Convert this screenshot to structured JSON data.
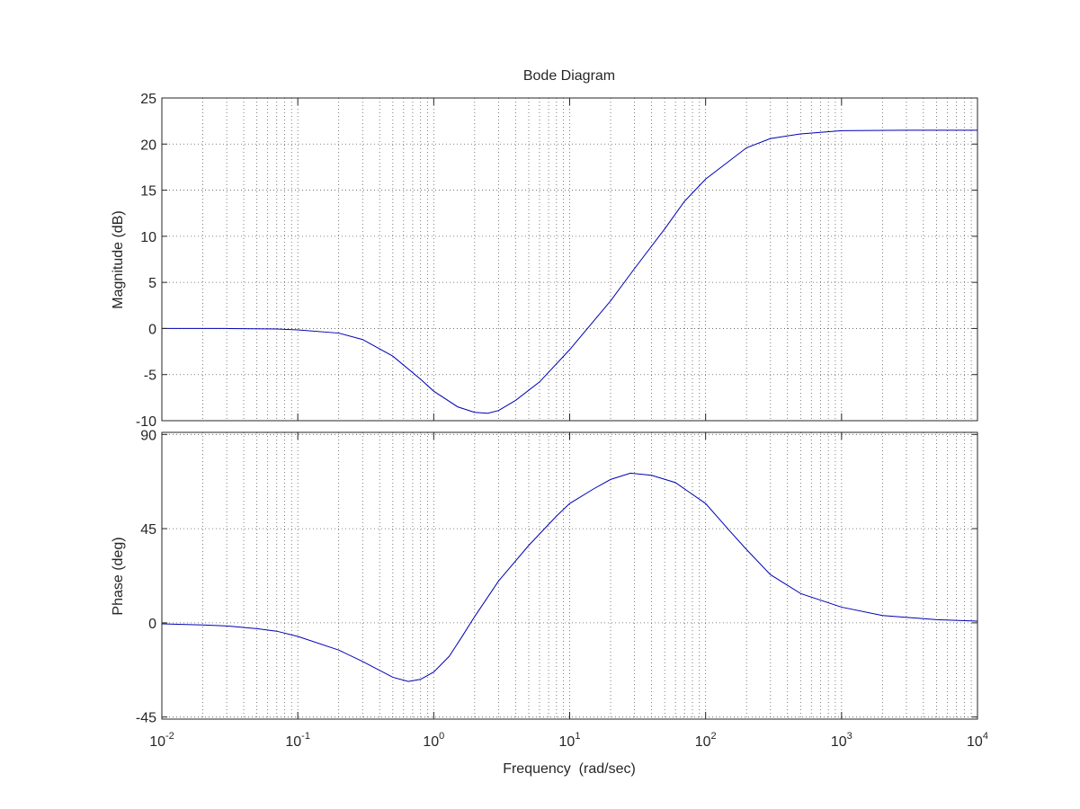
{
  "chart_data": {
    "type": "line",
    "title": "Bode Diagram",
    "xlabel": "Frequency  (rad/sec)",
    "x_scale": "log",
    "xlim": [
      0.01,
      10000
    ],
    "x_ticks": [
      {
        "base": "10",
        "exp": "-2"
      },
      {
        "base": "10",
        "exp": "-1"
      },
      {
        "base": "10",
        "exp": "0"
      },
      {
        "base": "10",
        "exp": "1"
      },
      {
        "base": "10",
        "exp": "2"
      },
      {
        "base": "10",
        "exp": "3"
      },
      {
        "base": "10",
        "exp": "4"
      }
    ],
    "grid": true,
    "line_color": "#0000b4",
    "panels": [
      {
        "name": "magnitude",
        "ylabel": "Magnitude (dB)",
        "ylim": [
          -10,
          25
        ],
        "yticks": [
          25,
          20,
          15,
          10,
          5,
          0,
          -5,
          -10
        ],
        "x": [
          0.01,
          0.03,
          0.07,
          0.1,
          0.2,
          0.3,
          0.5,
          0.8,
          1,
          1.5,
          2,
          2.5,
          3,
          4,
          6,
          10,
          20,
          30,
          50,
          70,
          100,
          200,
          300,
          500,
          1000,
          3000,
          10000
        ],
        "y": [
          0,
          0,
          -0.05,
          -0.15,
          -0.5,
          -1.2,
          -3,
          -5.5,
          -6.8,
          -8.5,
          -9.1,
          -9.2,
          -8.9,
          -7.8,
          -5.8,
          -2.3,
          3,
          6.5,
          10.8,
          13.8,
          16.2,
          19.6,
          20.6,
          21.1,
          21.45,
          21.5,
          21.5
        ]
      },
      {
        "name": "phase",
        "ylabel": "Phase (deg)",
        "ylim": [
          -46,
          91
        ],
        "yticks": [
          90,
          45,
          0,
          -45
        ],
        "x": [
          0.01,
          0.02,
          0.03,
          0.05,
          0.07,
          0.1,
          0.2,
          0.3,
          0.5,
          0.65,
          0.8,
          1,
          1.3,
          1.6,
          2,
          3,
          5,
          8,
          10,
          15,
          20,
          28,
          40,
          60,
          100,
          150,
          200,
          300,
          500,
          1000,
          2000,
          5000,
          10000
        ],
        "y": [
          -0.5,
          -1,
          -1.5,
          -2.8,
          -4,
          -6.5,
          -13,
          -18.5,
          -26,
          -28,
          -27,
          -23.5,
          -16,
          -7,
          3,
          20,
          37,
          51,
          57,
          64,
          68.5,
          71.5,
          70.5,
          67,
          57,
          44,
          35,
          23,
          14,
          7.5,
          3.5,
          1.5,
          0.8
        ]
      }
    ]
  }
}
